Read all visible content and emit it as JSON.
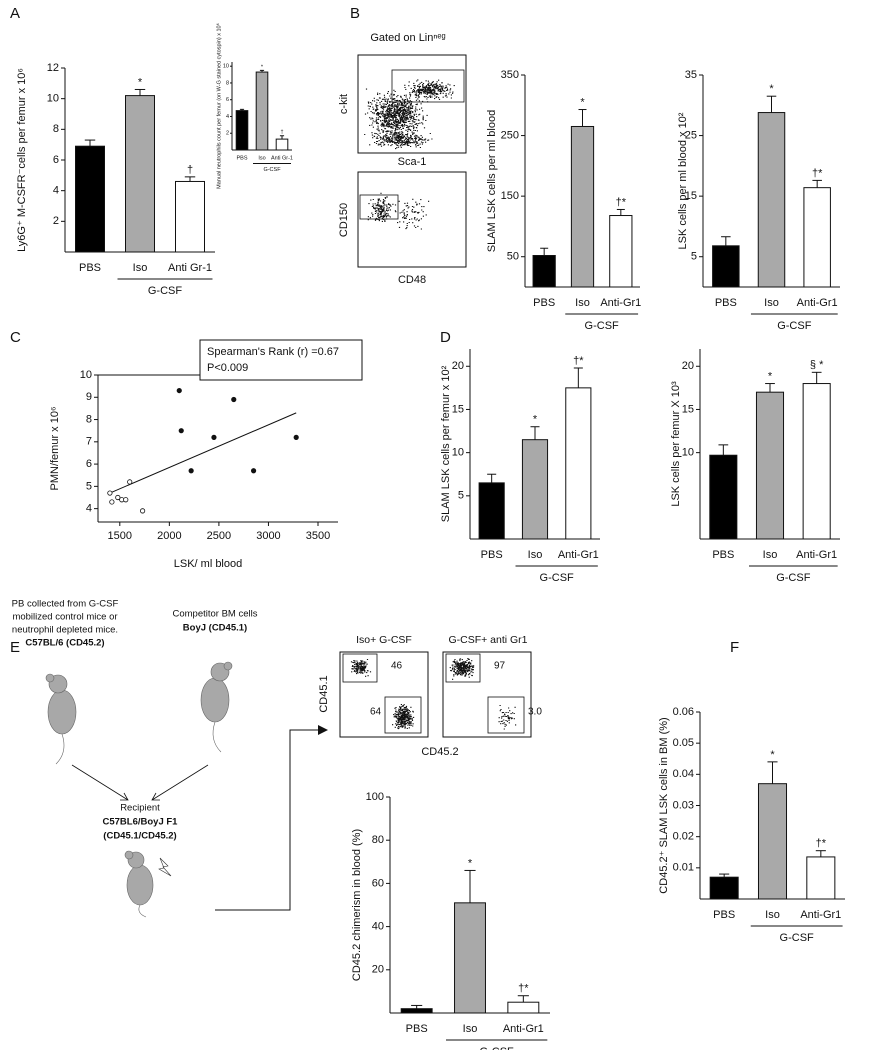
{
  "panels": [
    "A",
    "B",
    "C",
    "D",
    "E",
    "F"
  ],
  "flow_b": {
    "title": "Gated on Linⁿᵉᵍ",
    "top_y": "c-kit",
    "top_x": "Sca-1",
    "bottom_y": "CD150",
    "bottom_x": "CD48"
  },
  "flow_e": {
    "left_title": "Iso+ G-CSF",
    "right_title": "G-CSF+ anti Gr1",
    "y_label": "CD45.1",
    "x_label": "CD45.2",
    "left_gates": [
      "46",
      "64"
    ],
    "right_gates": [
      "97",
      "3.0"
    ]
  },
  "diagram": {
    "donor_text": [
      "PB collected  from G-CSF",
      "mobilized control mice  or",
      "neutrophil depleted  mice."
    ],
    "donor_strain": "C57BL/6  (CD45.2)",
    "competitor_text": "Competitor BM cells",
    "competitor_strain": "BoyJ (CD45.1)",
    "recipient": [
      "Recipient",
      "C57BL6/BoyJ F1",
      "(CD45.1/CD45.2)"
    ]
  },
  "chart_data": [
    {
      "type": "bar",
      "ylabel": "Ly6G⁺ M-CSFR⁻cells per femur x 10⁶",
      "categories": [
        "PBS",
        "Iso",
        "Anti Gr-1"
      ],
      "values": [
        6.9,
        10.2,
        4.6
      ],
      "errors": [
        0.4,
        0.4,
        0.3
      ],
      "colors": [
        "#000000",
        "#a9a9a9",
        "#ffffff"
      ],
      "ylim": [
        0,
        12
      ],
      "yticks": [
        2,
        4,
        6,
        8,
        10,
        12
      ],
      "annotations": [
        {
          "category": "Iso",
          "text": "*"
        },
        {
          "category": "Anti Gr-1",
          "text": "†"
        }
      ],
      "group": {
        "label": "G-CSF",
        "categories": [
          "Iso",
          "Anti Gr-1"
        ]
      }
    },
    {
      "type": "bar",
      "ylabel": "Manual neutrophils count per femur (on W-G stained cytospin) x 10⁶",
      "categories": [
        "PBS",
        "Iso",
        "Anti Gr-1"
      ],
      "values": [
        4.7,
        9.3,
        1.3
      ],
      "errors": [
        0.15,
        0.2,
        0.4
      ],
      "colors": [
        "#000000",
        "#a9a9a9",
        "#ffffff"
      ],
      "ylim": [
        0,
        10.5
      ],
      "yticks": [
        2,
        4,
        6,
        8,
        10
      ],
      "annotations": [
        {
          "category": "Iso",
          "text": "*"
        },
        {
          "category": "Anti Gr-1",
          "text": "†"
        }
      ],
      "group": {
        "label": "G-CSF",
        "categories": [
          "Iso",
          "Anti Gr-1"
        ]
      }
    },
    {
      "type": "bar",
      "ylabel": "SLAM LSK cells per ml blood",
      "categories": [
        "PBS",
        "Iso",
        "Anti-Gr1"
      ],
      "values": [
        52,
        265,
        118
      ],
      "errors": [
        12,
        28,
        10
      ],
      "colors": [
        "#000000",
        "#a9a9a9",
        "#ffffff"
      ],
      "ylim": [
        0,
        350
      ],
      "yticks": [
        50,
        150,
        250,
        350
      ],
      "annotations": [
        {
          "category": "Iso",
          "text": "*"
        },
        {
          "category": "Anti-Gr1",
          "text": "†*"
        }
      ],
      "group": {
        "label": "G-CSF",
        "categories": [
          "Iso",
          "Anti-Gr1"
        ]
      }
    },
    {
      "type": "bar",
      "ylabel": "LSK cells per ml blood x 10²",
      "categories": [
        "PBS",
        "Iso",
        "Anti-Gr1"
      ],
      "values": [
        6.8,
        28.8,
        16.4
      ],
      "errors": [
        1.5,
        2.7,
        1.2
      ],
      "colors": [
        "#000000",
        "#a9a9a9",
        "#ffffff"
      ],
      "ylim": [
        0,
        35
      ],
      "yticks": [
        5,
        15,
        25,
        35
      ],
      "annotations": [
        {
          "category": "Iso",
          "text": "*"
        },
        {
          "category": "Anti-Gr1",
          "text": "†*"
        }
      ],
      "group": {
        "label": "G-CSF",
        "categories": [
          "Iso",
          "Anti-Gr1"
        ]
      }
    },
    {
      "type": "scatter",
      "xlabel": "LSK/ ml blood",
      "ylabel": "PMN/femur x 10⁶",
      "stat_text": [
        "Spearman's Rank (r) =0.67",
        "P<0.009"
      ],
      "series": [
        {
          "marker": "filled",
          "x": [
            2100,
            2120,
            2220,
            2450,
            2650,
            2850,
            3280
          ],
          "y": [
            9.3,
            7.5,
            5.7,
            7.2,
            8.9,
            5.7,
            7.2
          ]
        },
        {
          "marker": "open",
          "x": [
            1400,
            1420,
            1480,
            1520,
            1560,
            1600,
            1730
          ],
          "y": [
            4.7,
            4.3,
            4.5,
            4.4,
            4.4,
            5.2,
            3.9
          ]
        }
      ],
      "fit_line": {
        "x": [
          1400,
          3280
        ],
        "y": [
          4.7,
          8.3
        ]
      },
      "xlim": [
        1280,
        3500
      ],
      "xticks": [
        1500,
        2000,
        2500,
        3000,
        3500
      ],
      "ylim": [
        3.4,
        10
      ],
      "yticks": [
        4,
        5,
        6,
        7,
        8,
        9,
        10
      ]
    },
    {
      "type": "bar",
      "ylabel": "SLAM LSK cells per femur x 10²",
      "categories": [
        "PBS",
        "Iso",
        "Anti-Gr1"
      ],
      "values": [
        6.5,
        11.5,
        17.5
      ],
      "errors": [
        1,
        1.5,
        2.3
      ],
      "colors": [
        "#000000",
        "#a9a9a9",
        "#ffffff"
      ],
      "ylim": [
        0,
        22
      ],
      "yticks": [
        5,
        10,
        15,
        20
      ],
      "annotations": [
        {
          "category": "Iso",
          "text": "*"
        },
        {
          "category": "Anti-Gr1",
          "text": "†*"
        }
      ],
      "group": {
        "label": "G-CSF",
        "categories": [
          "Iso",
          "Anti-Gr1"
        ]
      }
    },
    {
      "type": "bar",
      "ylabel": "LSK cells per femur X 10³",
      "categories": [
        "PBS",
        "Iso",
        "Anti-Gr1"
      ],
      "values": [
        9.7,
        17,
        18
      ],
      "errors": [
        1.2,
        1,
        1.3
      ],
      "colors": [
        "#000000",
        "#a9a9a9",
        "#ffffff"
      ],
      "ylim": [
        0,
        22
      ],
      "yticks": [
        10,
        15,
        20
      ],
      "annotations": [
        {
          "category": "Iso",
          "text": "*"
        },
        {
          "category": "Anti-Gr1",
          "text": "§ *"
        }
      ],
      "group": {
        "label": "G-CSF",
        "categories": [
          "Iso",
          "Anti-Gr1"
        ]
      }
    },
    {
      "type": "bar",
      "ylabel": "CD45.2 chimerism in blood (%)",
      "categories": [
        "PBS",
        "Iso",
        "Anti-Gr1"
      ],
      "values": [
        2,
        51,
        5
      ],
      "errors": [
        1.5,
        15,
        3
      ],
      "colors": [
        "#000000",
        "#a9a9a9",
        "#ffffff"
      ],
      "ylim": [
        0,
        100
      ],
      "yticks": [
        20,
        40,
        60,
        80,
        100
      ],
      "annotations": [
        {
          "category": "Iso",
          "text": "*"
        },
        {
          "category": "Anti-Gr1",
          "text": "†*"
        }
      ],
      "group": {
        "label": "G-CSF",
        "categories": [
          "Iso",
          "Anti-Gr1"
        ]
      }
    },
    {
      "type": "bar",
      "ylabel": "CD45.2⁺ SLAM LSK cells in BM (%)",
      "categories": [
        "PBS",
        "Iso",
        "Anti-Gr1"
      ],
      "values": [
        0.007,
        0.037,
        0.0135
      ],
      "errors": [
        0.001,
        0.007,
        0.002
      ],
      "colors": [
        "#000000",
        "#a9a9a9",
        "#ffffff"
      ],
      "ylim": [
        0,
        0.06
      ],
      "yticks": [
        0.01,
        0.02,
        0.03,
        0.04,
        0.05,
        0.06
      ],
      "annotations": [
        {
          "category": "Iso",
          "text": "*"
        },
        {
          "category": "Anti-Gr1",
          "text": "†*"
        }
      ],
      "group": {
        "label": "G-CSF",
        "categories": [
          "Iso",
          "Anti-Gr1"
        ]
      }
    }
  ]
}
